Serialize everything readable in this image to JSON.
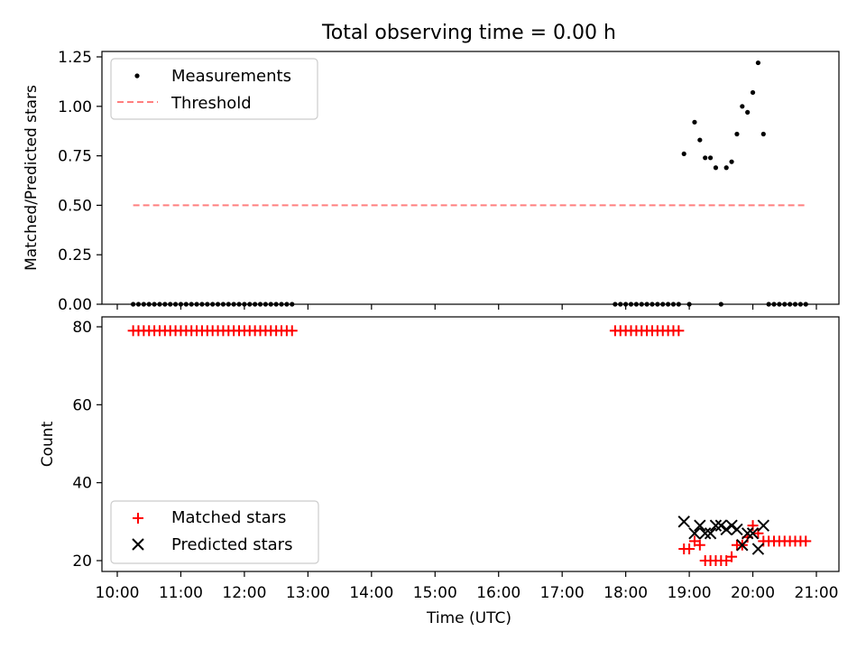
{
  "chart_data": [
    {
      "type": "scatter",
      "title": "Total observing time = 0.00 h",
      "ylabel": "Matched/Predicted stars",
      "xlim": [
        "10:00",
        "21:00"
      ],
      "ylim": [
        0,
        1.25
      ],
      "yticks": [
        "0.00",
        "0.25",
        "0.50",
        "0.75",
        "1.00",
        "1.25"
      ],
      "legend": {
        "placement": "top-left"
      },
      "series": [
        {
          "name": "Measurements",
          "marker": "dot",
          "color": "#000000",
          "x": [
            "10:15",
            "10:20",
            "10:25",
            "10:30",
            "10:35",
            "10:40",
            "10:45",
            "10:50",
            "10:55",
            "11:00",
            "11:05",
            "11:10",
            "11:15",
            "11:20",
            "11:25",
            "11:30",
            "11:35",
            "11:40",
            "11:45",
            "11:50",
            "11:55",
            "12:00",
            "12:05",
            "12:10",
            "12:15",
            "12:20",
            "12:25",
            "12:30",
            "12:35",
            "12:40",
            "12:45",
            "17:50",
            "17:55",
            "18:00",
            "18:05",
            "18:10",
            "18:15",
            "18:20",
            "18:25",
            "18:30",
            "18:35",
            "18:40",
            "18:45",
            "18:50",
            "18:55",
            "19:00",
            "19:05",
            "19:10",
            "19:15",
            "19:20",
            "19:25",
            "19:30",
            "19:35",
            "19:40",
            "19:45",
            "19:50",
            "19:55",
            "20:00",
            "20:05",
            "20:10",
            "20:15",
            "20:20",
            "20:25",
            "20:30",
            "20:35",
            "20:40",
            "20:45",
            "20:50"
          ],
          "y": [
            0,
            0,
            0,
            0,
            0,
            0,
            0,
            0,
            0,
            0,
            0,
            0,
            0,
            0,
            0,
            0,
            0,
            0,
            0,
            0,
            0,
            0,
            0,
            0,
            0,
            0,
            0,
            0,
            0,
            0,
            0,
            0,
            0,
            0,
            0,
            0,
            0,
            0,
            0,
            0,
            0,
            0,
            0,
            0,
            0.76,
            0,
            0.92,
            0.83,
            0.74,
            0.74,
            0.69,
            0,
            0.69,
            0.72,
            0.86,
            1.0,
            0.97,
            1.07,
            1.22,
            0.86,
            0,
            0,
            0,
            0,
            0,
            0,
            0,
            0
          ]
        },
        {
          "name": "Threshold",
          "line": "dashed",
          "color": "#ff7f7f",
          "x": [
            "10:15",
            "20:50"
          ],
          "y": [
            0.5,
            0.5
          ]
        }
      ]
    },
    {
      "type": "scatter",
      "xlabel": "Time (UTC)",
      "ylabel": "Count",
      "xlim": [
        "10:00",
        "21:00"
      ],
      "ylim": [
        18,
        82
      ],
      "yticks": [
        "20",
        "40",
        "60",
        "80"
      ],
      "xticks": [
        "10:00",
        "11:00",
        "12:00",
        "13:00",
        "14:00",
        "15:00",
        "16:00",
        "17:00",
        "18:00",
        "19:00",
        "20:00",
        "21:00"
      ],
      "legend": {
        "placement": "bottom-left"
      },
      "series": [
        {
          "name": "Matched stars",
          "marker": "plus",
          "color": "#ff0000",
          "x": [
            "10:15",
            "10:20",
            "10:25",
            "10:30",
            "10:35",
            "10:40",
            "10:45",
            "10:50",
            "10:55",
            "11:00",
            "11:05",
            "11:10",
            "11:15",
            "11:20",
            "11:25",
            "11:30",
            "11:35",
            "11:40",
            "11:45",
            "11:50",
            "11:55",
            "12:00",
            "12:05",
            "12:10",
            "12:15",
            "12:20",
            "12:25",
            "12:30",
            "12:35",
            "12:40",
            "12:45",
            "17:50",
            "17:55",
            "18:00",
            "18:05",
            "18:10",
            "18:15",
            "18:20",
            "18:25",
            "18:30",
            "18:35",
            "18:40",
            "18:45",
            "18:50",
            "18:55",
            "19:00",
            "19:05",
            "19:10",
            "19:15",
            "19:20",
            "19:25",
            "19:30",
            "19:35",
            "19:40",
            "19:45",
            "19:50",
            "19:55",
            "20:00",
            "20:05",
            "20:10",
            "20:15",
            "20:20",
            "20:25",
            "20:30",
            "20:35",
            "20:40",
            "20:45",
            "20:50"
          ],
          "y": [
            79,
            79,
            79,
            79,
            79,
            79,
            79,
            79,
            79,
            79,
            79,
            79,
            79,
            79,
            79,
            79,
            79,
            79,
            79,
            79,
            79,
            79,
            79,
            79,
            79,
            79,
            79,
            79,
            79,
            79,
            79,
            79,
            79,
            79,
            79,
            79,
            79,
            79,
            79,
            79,
            79,
            79,
            79,
            79,
            23,
            23,
            25,
            24,
            20,
            20,
            20,
            20,
            20,
            21,
            24,
            24,
            26,
            29,
            27,
            25,
            25,
            25,
            25,
            25,
            25,
            25,
            25,
            25
          ]
        },
        {
          "name": "Predicted stars",
          "marker": "x",
          "color": "#000000",
          "x": [
            "18:55",
            "19:05",
            "19:10",
            "19:15",
            "19:20",
            "19:25",
            "19:30",
            "19:35",
            "19:40",
            "19:45",
            "19:50",
            "19:55",
            "20:00",
            "20:05",
            "20:10"
          ],
          "y": [
            30,
            27,
            29,
            27,
            27,
            29,
            29,
            28,
            29,
            28,
            24,
            27,
            27,
            23,
            29
          ]
        }
      ]
    }
  ]
}
